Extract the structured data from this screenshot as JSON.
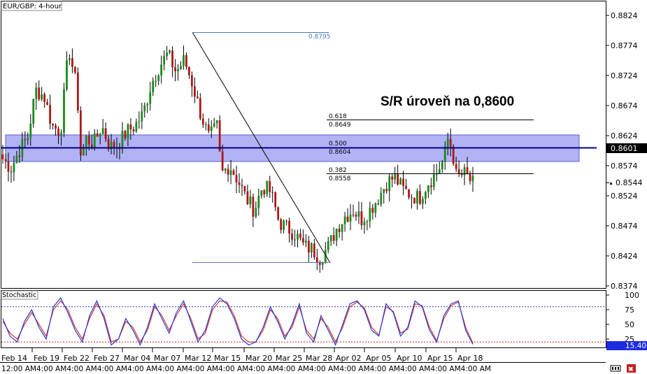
{
  "window": {
    "title": "EUR/GBP: 4-hour",
    "indicator_title": "Stochastic"
  },
  "annotation": {
    "text": "S/R úroveň na 0,8600"
  },
  "fib": {
    "high_label": "0.8795",
    "levels": [
      {
        "ratio": "0.618",
        "price": "0.8649",
        "value": 0.8649
      },
      {
        "ratio": "0.500",
        "price": "0.8604",
        "value": 0.8604
      },
      {
        "ratio": "0.382",
        "price": "0.8558",
        "value": 0.8558
      }
    ],
    "high": 0.8795,
    "low": 0.8412
  },
  "price_axis": {
    "ticks": [
      "0.8824",
      "0.8774",
      "0.8724",
      "0.8674",
      "0.8624",
      "0.8574",
      "0.8524",
      "0.8474",
      "0.8424",
      "0.8374"
    ],
    "current_line_label": "0.8601",
    "current_price_label": "0.8544"
  },
  "stoch_axis": {
    "ticks": [
      "100",
      "75",
      "50",
      "25",
      "0"
    ],
    "value_label": "15.40"
  },
  "time_axis": {
    "labels": [
      "12:00 AM",
      "Feb 19",
      "Feb 22",
      "Feb 27",
      "Mar 04",
      "Mar 07",
      "Mar 12",
      "Mar 15",
      "Mar 20",
      "Mar 25",
      "Mar 28",
      "Apr 02",
      "Apr 05",
      "Apr 10",
      "Apr 15",
      "Apr 18"
    ],
    "row_text": "12:00 AM4:00 AM4:00 AM4:00 AM4:00 AM4:00 AM4:00 AM4:00 AM4:00 AM4:00 AM4:00 AM4:00 AM4:00 AM4:00 AM4:00 AM4:00 AM",
    "first": "Feb 14"
  },
  "chart_data": {
    "type": "candlestick",
    "symbol": "EUR/GBP",
    "timeframe": "4-hour",
    "ylim": [
      0.8364,
      0.8834
    ],
    "support_resistance_zone": [
      0.8575,
      0.8624
    ],
    "sr_line": 0.8601,
    "last_price": 0.8544,
    "close_path": [
      [
        0,
        0.8585
      ],
      [
        2,
        0.857
      ],
      [
        4,
        0.86
      ],
      [
        6,
        0.862
      ],
      [
        8,
        0.87
      ],
      [
        10,
        0.869
      ],
      [
        12,
        0.864
      ],
      [
        14,
        0.863
      ],
      [
        16,
        0.877
      ],
      [
        18,
        0.87
      ],
      [
        19,
        0.858
      ],
      [
        20,
        0.862
      ],
      [
        22,
        0.861
      ],
      [
        24,
        0.864
      ],
      [
        26,
        0.8605
      ],
      [
        28,
        0.861
      ],
      [
        30,
        0.863
      ],
      [
        32,
        0.864
      ],
      [
        34,
        0.866
      ],
      [
        36,
        0.871
      ],
      [
        38,
        0.874
      ],
      [
        40,
        0.876
      ],
      [
        42,
        0.873
      ],
      [
        44,
        0.875
      ],
      [
        46,
        0.871
      ],
      [
        48,
        0.866
      ],
      [
        50,
        0.862
      ],
      [
        52,
        0.864
      ],
      [
        53,
        0.856
      ],
      [
        55,
        0.8575
      ],
      [
        57,
        0.855
      ],
      [
        59,
        0.852
      ],
      [
        61,
        0.85
      ],
      [
        63,
        0.854
      ],
      [
        65,
        0.853
      ],
      [
        67,
        0.848
      ],
      [
        69,
        0.847
      ],
      [
        71,
        0.846
      ],
      [
        73,
        0.844
      ],
      [
        75,
        0.8435
      ],
      [
        77,
        0.842
      ],
      [
        79,
        0.844
      ],
      [
        81,
        0.847
      ],
      [
        83,
        0.849
      ],
      [
        85,
        0.85
      ],
      [
        87,
        0.8485
      ],
      [
        89,
        0.85
      ],
      [
        91,
        0.852
      ],
      [
        93,
        0.8545
      ],
      [
        95,
        0.8555
      ],
      [
        97,
        0.8535
      ],
      [
        99,
        0.8525
      ],
      [
        101,
        0.852
      ],
      [
        103,
        0.8545
      ],
      [
        105,
        0.856
      ],
      [
        107,
        0.8585
      ],
      [
        108,
        0.862
      ],
      [
        109,
        0.86
      ],
      [
        110,
        0.8555
      ],
      [
        112,
        0.856
      ],
      [
        114,
        0.8544
      ]
    ],
    "stochastic": {
      "ylim": [
        0,
        100
      ],
      "levels": [
        80,
        20
      ],
      "value": 15.4,
      "k": [
        60,
        30,
        20,
        55,
        75,
        45,
        25,
        80,
        95,
        70,
        40,
        20,
        65,
        90,
        60,
        15,
        25,
        60,
        40,
        15,
        45,
        85,
        60,
        35,
        70,
        90,
        55,
        20,
        40,
        80,
        95,
        85,
        60,
        25,
        15,
        20,
        45,
        80,
        55,
        25,
        50,
        85,
        35,
        20,
        65,
        40,
        15,
        50,
        85,
        90,
        75,
        40,
        30,
        85,
        70,
        30,
        45,
        90,
        80,
        40,
        20,
        65,
        85,
        90,
        40,
        16
      ],
      "d": [
        55,
        35,
        25,
        50,
        70,
        50,
        30,
        75,
        90,
        75,
        45,
        25,
        60,
        85,
        65,
        20,
        25,
        55,
        45,
        20,
        40,
        80,
        65,
        40,
        65,
        85,
        60,
        25,
        35,
        75,
        90,
        88,
        65,
        30,
        20,
        20,
        40,
        75,
        60,
        30,
        45,
        80,
        40,
        25,
        60,
        45,
        20,
        45,
        80,
        88,
        78,
        45,
        32,
        80,
        72,
        35,
        42,
        85,
        82,
        45,
        22,
        60,
        82,
        88,
        45,
        18
      ]
    },
    "x_labels": [
      "Feb 14",
      "Feb 19",
      "Feb 22",
      "Feb 27",
      "Mar 04",
      "Mar 07",
      "Mar 12",
      "Mar 15",
      "Mar 20",
      "Mar 25",
      "Mar 28",
      "Apr 02",
      "Apr 05",
      "Apr 10",
      "Apr 15",
      "Apr 18"
    ]
  },
  "colors": {
    "bull": "#1a8a1a",
    "bear": "#b01515",
    "zone": "#9da0f0",
    "sr_line": "#000080",
    "fib_line": "#000000",
    "fib_range": "#4a7ab7",
    "stoch_k": "#1f3fd0",
    "stoch_d": "#e03030",
    "level_80": "#3030c0",
    "level_20": "#d02020"
  }
}
